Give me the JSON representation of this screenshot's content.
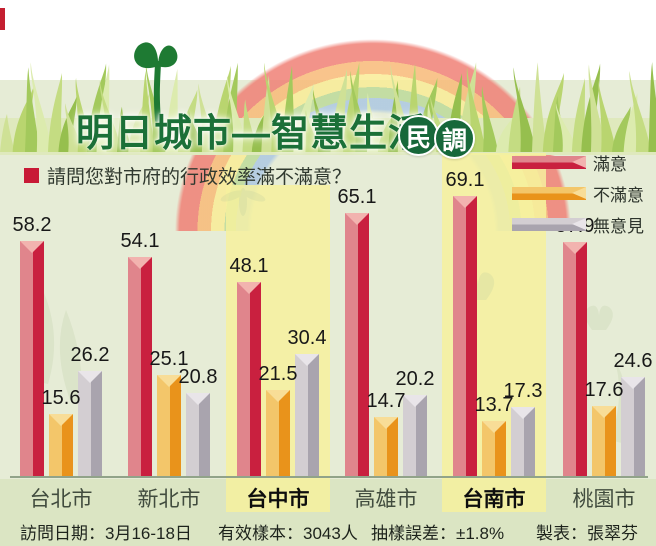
{
  "title": "明日城市—智慧生活",
  "badge_chars": [
    "民",
    "調"
  ],
  "question": "請問您對市府的行政效率滿不滿意？",
  "footer": {
    "survey_date": "訪問日期：3月16-18日",
    "sample": "有效樣本：3043人",
    "margin_of_error": "抽樣誤差：±1.8%",
    "credit": "製表：張翠芬"
  },
  "colors": {
    "title_green": "#1b7038",
    "badge_green": "#17683a",
    "question_bullet_red": "#c81a36",
    "background_green": "#e6ecd6",
    "highlight_band_yellow": "#f6f19e",
    "satisfied_red": "#c9203f",
    "dissatisfied_orange": "#e9931b",
    "no_opinion_gray": "#a9a4ae"
  },
  "chart_data": {
    "type": "bar",
    "title": "明日城市—智慧生活民調",
    "question": "請問您對市府的行政效率滿不滿意？",
    "categories": [
      "台北市",
      "新北市",
      "台中市",
      "高雄市",
      "台南市",
      "桃園市"
    ],
    "series": [
      {
        "name": "滿意",
        "values": [
          58.2,
          54.1,
          48.1,
          65.1,
          69.1,
          57.9
        ],
        "colors": {
          "light": "#e0858c",
          "dark": "#c9203f",
          "notch": "#f2b3af"
        }
      },
      {
        "name": "不滿意",
        "values": [
          15.6,
          25.1,
          21.5,
          14.7,
          13.7,
          17.6
        ],
        "colors": {
          "light": "#f3c66a",
          "dark": "#e9931b",
          "notch": "#f8dd97"
        }
      },
      {
        "name": "無意見",
        "values": [
          26.2,
          20.8,
          30.4,
          20.2,
          17.3,
          24.6
        ],
        "colors": {
          "light": "#d3ced2",
          "dark": "#a9a4ae",
          "notch": "#e9e5e9"
        }
      }
    ],
    "highlighted_categories": [
      "台中市",
      "台南市"
    ],
    "value_labels_shown": true,
    "grid": false,
    "legend_position": "top-right",
    "ylim": [
      0,
      75
    ]
  }
}
